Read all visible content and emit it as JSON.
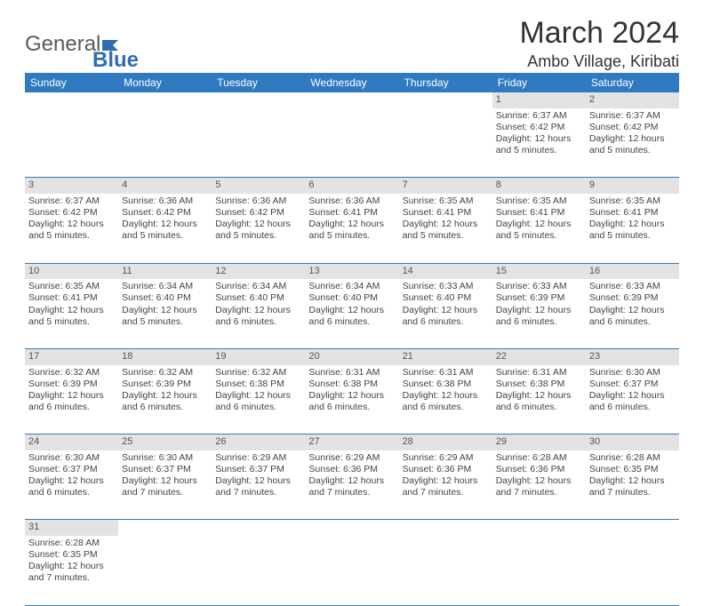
{
  "logo": {
    "text1": "General",
    "text2": "Blue",
    "color1": "#5a5a5a",
    "color2": "#2f6fb0",
    "icon_color": "#2f6fb0"
  },
  "title": "March 2024",
  "location": "Ambo Village, Kiribati",
  "header_bg": "#2f7ac0",
  "header_fg": "#ffffff",
  "daynum_bg": "#e3e3e3",
  "border_color": "#2f7ac0",
  "weekdays": [
    "Sunday",
    "Monday",
    "Tuesday",
    "Wednesday",
    "Thursday",
    "Friday",
    "Saturday"
  ],
  "weeks": [
    {
      "nums": [
        "",
        "",
        "",
        "",
        "",
        "1",
        "2"
      ],
      "cells": [
        null,
        null,
        null,
        null,
        null,
        {
          "sr": "6:37 AM",
          "ss": "6:42 PM",
          "dl": "12 hours and 5 minutes."
        },
        {
          "sr": "6:37 AM",
          "ss": "6:42 PM",
          "dl": "12 hours and 5 minutes."
        }
      ]
    },
    {
      "nums": [
        "3",
        "4",
        "5",
        "6",
        "7",
        "8",
        "9"
      ],
      "cells": [
        {
          "sr": "6:37 AM",
          "ss": "6:42 PM",
          "dl": "12 hours and 5 minutes."
        },
        {
          "sr": "6:36 AM",
          "ss": "6:42 PM",
          "dl": "12 hours and 5 minutes."
        },
        {
          "sr": "6:36 AM",
          "ss": "6:42 PM",
          "dl": "12 hours and 5 minutes."
        },
        {
          "sr": "6:36 AM",
          "ss": "6:41 PM",
          "dl": "12 hours and 5 minutes."
        },
        {
          "sr": "6:35 AM",
          "ss": "6:41 PM",
          "dl": "12 hours and 5 minutes."
        },
        {
          "sr": "6:35 AM",
          "ss": "6:41 PM",
          "dl": "12 hours and 5 minutes."
        },
        {
          "sr": "6:35 AM",
          "ss": "6:41 PM",
          "dl": "12 hours and 5 minutes."
        }
      ]
    },
    {
      "nums": [
        "10",
        "11",
        "12",
        "13",
        "14",
        "15",
        "16"
      ],
      "cells": [
        {
          "sr": "6:35 AM",
          "ss": "6:41 PM",
          "dl": "12 hours and 5 minutes."
        },
        {
          "sr": "6:34 AM",
          "ss": "6:40 PM",
          "dl": "12 hours and 5 minutes."
        },
        {
          "sr": "6:34 AM",
          "ss": "6:40 PM",
          "dl": "12 hours and 6 minutes."
        },
        {
          "sr": "6:34 AM",
          "ss": "6:40 PM",
          "dl": "12 hours and 6 minutes."
        },
        {
          "sr": "6:33 AM",
          "ss": "6:40 PM",
          "dl": "12 hours and 6 minutes."
        },
        {
          "sr": "6:33 AM",
          "ss": "6:39 PM",
          "dl": "12 hours and 6 minutes."
        },
        {
          "sr": "6:33 AM",
          "ss": "6:39 PM",
          "dl": "12 hours and 6 minutes."
        }
      ]
    },
    {
      "nums": [
        "17",
        "18",
        "19",
        "20",
        "21",
        "22",
        "23"
      ],
      "cells": [
        {
          "sr": "6:32 AM",
          "ss": "6:39 PM",
          "dl": "12 hours and 6 minutes."
        },
        {
          "sr": "6:32 AM",
          "ss": "6:39 PM",
          "dl": "12 hours and 6 minutes."
        },
        {
          "sr": "6:32 AM",
          "ss": "6:38 PM",
          "dl": "12 hours and 6 minutes."
        },
        {
          "sr": "6:31 AM",
          "ss": "6:38 PM",
          "dl": "12 hours and 6 minutes."
        },
        {
          "sr": "6:31 AM",
          "ss": "6:38 PM",
          "dl": "12 hours and 6 minutes."
        },
        {
          "sr": "6:31 AM",
          "ss": "6:38 PM",
          "dl": "12 hours and 6 minutes."
        },
        {
          "sr": "6:30 AM",
          "ss": "6:37 PM",
          "dl": "12 hours and 6 minutes."
        }
      ]
    },
    {
      "nums": [
        "24",
        "25",
        "26",
        "27",
        "28",
        "29",
        "30"
      ],
      "cells": [
        {
          "sr": "6:30 AM",
          "ss": "6:37 PM",
          "dl": "12 hours and 6 minutes."
        },
        {
          "sr": "6:30 AM",
          "ss": "6:37 PM",
          "dl": "12 hours and 7 minutes."
        },
        {
          "sr": "6:29 AM",
          "ss": "6:37 PM",
          "dl": "12 hours and 7 minutes."
        },
        {
          "sr": "6:29 AM",
          "ss": "6:36 PM",
          "dl": "12 hours and 7 minutes."
        },
        {
          "sr": "6:29 AM",
          "ss": "6:36 PM",
          "dl": "12 hours and 7 minutes."
        },
        {
          "sr": "6:28 AM",
          "ss": "6:36 PM",
          "dl": "12 hours and 7 minutes."
        },
        {
          "sr": "6:28 AM",
          "ss": "6:35 PM",
          "dl": "12 hours and 7 minutes."
        }
      ]
    },
    {
      "nums": [
        "31",
        "",
        "",
        "",
        "",
        "",
        ""
      ],
      "cells": [
        {
          "sr": "6:28 AM",
          "ss": "6:35 PM",
          "dl": "12 hours and 7 minutes."
        },
        null,
        null,
        null,
        null,
        null,
        null
      ]
    }
  ],
  "labels": {
    "sunrise": "Sunrise:",
    "sunset": "Sunset:",
    "daylight": "Daylight:"
  }
}
